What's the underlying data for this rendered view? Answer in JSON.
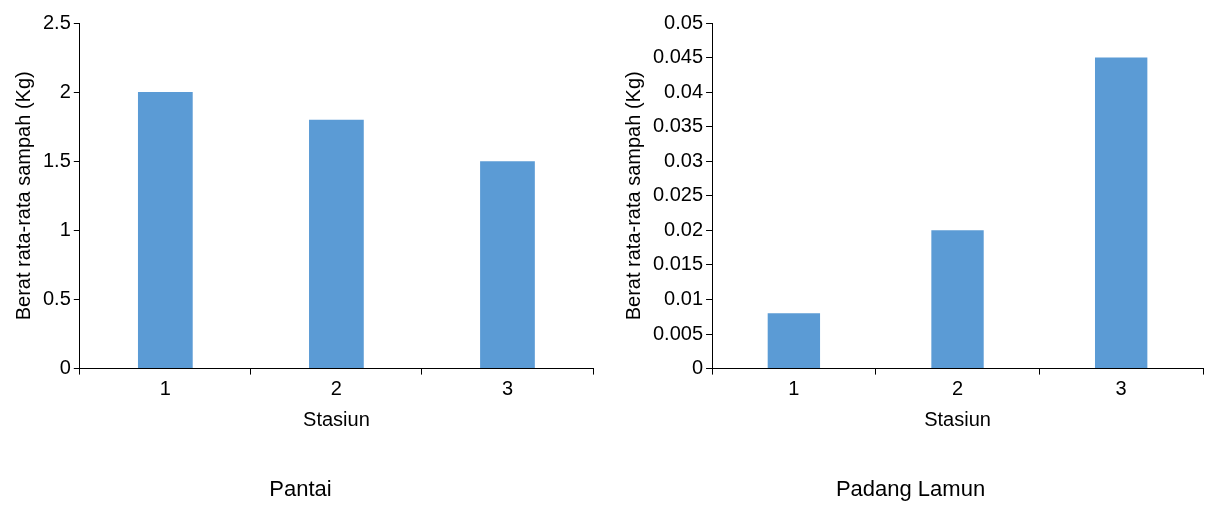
{
  "chart_data": [
    {
      "type": "bar",
      "title": "Pantai",
      "xlabel": "Stasiun",
      "ylabel": "Berat rata-rata sampah (Kg)",
      "categories": [
        "1",
        "2",
        "3"
      ],
      "values": [
        2,
        1.8,
        1.5
      ],
      "color": "#5b9bd5",
      "ylim": [
        0,
        2.5
      ],
      "yticks": [
        0,
        0.5,
        1,
        1.5,
        2,
        2.5
      ],
      "grid": false,
      "legend": false
    },
    {
      "type": "bar",
      "title": "Padang Lamun",
      "xlabel": "Stasiun",
      "ylabel": "Berat rata-rata sampah (Kg)",
      "categories": [
        "1",
        "2",
        "3"
      ],
      "values": [
        0.008,
        0.02,
        0.045
      ],
      "color": "#5b9bd5",
      "ylim": [
        0,
        0.05
      ],
      "yticks": [
        0,
        0.005,
        0.01,
        0.015,
        0.02,
        0.025,
        0.03,
        0.035,
        0.04,
        0.045,
        0.05
      ],
      "grid": false,
      "legend": false
    }
  ]
}
